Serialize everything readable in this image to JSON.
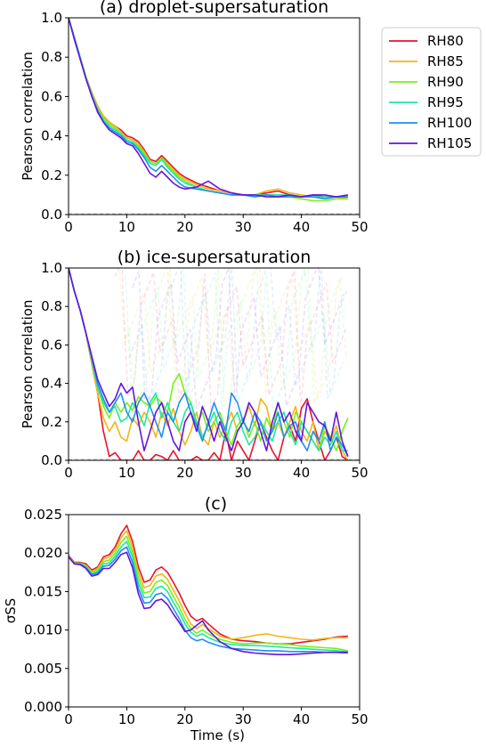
{
  "chart_data": [
    {
      "type": "line",
      "title": "(a) droplet-supersaturation",
      "xlabel": "",
      "ylabel": "Pearson correlation",
      "xlim": [
        0,
        50
      ],
      "ylim": [
        0,
        1.0
      ],
      "xticks": [
        "0",
        "10",
        "20",
        "30",
        "40",
        "50"
      ],
      "yticks": [
        "0.0",
        "0.2",
        "0.4",
        "0.6",
        "0.8",
        "1.0"
      ],
      "grid": false,
      "legend_position": "outside-right",
      "x": [
        0,
        1,
        2,
        3,
        4,
        5,
        6,
        7,
        8,
        9,
        10,
        11,
        12,
        13,
        14,
        15,
        16,
        17,
        18,
        19,
        20,
        22,
        24,
        26,
        28,
        30,
        32,
        34,
        36,
        38,
        40,
        42,
        44,
        46,
        48
      ],
      "series": [
        {
          "name": "RH80",
          "color": "#e8132e",
          "values": [
            1.0,
            0.9,
            0.8,
            0.7,
            0.62,
            0.55,
            0.5,
            0.47,
            0.45,
            0.43,
            0.4,
            0.39,
            0.37,
            0.33,
            0.28,
            0.27,
            0.3,
            0.27,
            0.24,
            0.21,
            0.19,
            0.16,
            0.14,
            0.12,
            0.11,
            0.1,
            0.1,
            0.11,
            0.12,
            0.1,
            0.09,
            0.1,
            0.09,
            0.09,
            0.09
          ]
        },
        {
          "name": "RH85",
          "color": "#f5b414",
          "values": [
            1.0,
            0.9,
            0.8,
            0.7,
            0.62,
            0.55,
            0.5,
            0.47,
            0.45,
            0.42,
            0.39,
            0.38,
            0.36,
            0.32,
            0.27,
            0.26,
            0.29,
            0.26,
            0.23,
            0.2,
            0.18,
            0.15,
            0.13,
            0.12,
            0.11,
            0.1,
            0.1,
            0.12,
            0.13,
            0.11,
            0.1,
            0.09,
            0.09,
            0.09,
            0.08
          ]
        },
        {
          "name": "RH90",
          "color": "#79f018",
          "values": [
            1.0,
            0.9,
            0.8,
            0.7,
            0.61,
            0.54,
            0.49,
            0.46,
            0.44,
            0.41,
            0.38,
            0.37,
            0.35,
            0.31,
            0.27,
            0.26,
            0.29,
            0.25,
            0.22,
            0.19,
            0.17,
            0.14,
            0.12,
            0.11,
            0.1,
            0.1,
            0.09,
            0.1,
            0.1,
            0.09,
            0.08,
            0.07,
            0.07,
            0.08,
            0.08
          ]
        },
        {
          "name": "RH95",
          "color": "#1ee8a4",
          "values": [
            1.0,
            0.9,
            0.8,
            0.69,
            0.61,
            0.53,
            0.48,
            0.45,
            0.43,
            0.41,
            0.38,
            0.37,
            0.34,
            0.3,
            0.26,
            0.25,
            0.28,
            0.24,
            0.21,
            0.18,
            0.16,
            0.14,
            0.12,
            0.11,
            0.1,
            0.1,
            0.1,
            0.1,
            0.1,
            0.1,
            0.09,
            0.09,
            0.09,
            0.09,
            0.09
          ]
        },
        {
          "name": "RH100",
          "color": "#1e90f0",
          "values": [
            1.0,
            0.9,
            0.79,
            0.69,
            0.6,
            0.53,
            0.47,
            0.44,
            0.42,
            0.4,
            0.37,
            0.36,
            0.33,
            0.29,
            0.24,
            0.22,
            0.25,
            0.22,
            0.19,
            0.16,
            0.14,
            0.13,
            0.12,
            0.11,
            0.1,
            0.1,
            0.09,
            0.1,
            0.09,
            0.09,
            0.09,
            0.09,
            0.08,
            0.09,
            0.09
          ]
        },
        {
          "name": "RH105",
          "color": "#6414e0",
          "values": [
            1.0,
            0.89,
            0.79,
            0.69,
            0.6,
            0.52,
            0.47,
            0.43,
            0.41,
            0.39,
            0.36,
            0.35,
            0.31,
            0.26,
            0.21,
            0.19,
            0.22,
            0.19,
            0.16,
            0.14,
            0.13,
            0.14,
            0.17,
            0.13,
            0.11,
            0.1,
            0.1,
            0.09,
            0.09,
            0.1,
            0.09,
            0.1,
            0.1,
            0.09,
            0.1
          ]
        }
      ]
    },
    {
      "type": "line",
      "title": "(b) ice-supersaturation",
      "xlabel": "",
      "ylabel": "Pearson correlation",
      "xlim": [
        0,
        50
      ],
      "ylim": [
        0,
        1.0
      ],
      "xticks": [
        "0",
        "10",
        "20",
        "30",
        "40",
        "50"
      ],
      "yticks": [
        "0.0",
        "0.2",
        "0.4",
        "0.6",
        "0.8",
        "1.0"
      ],
      "grid": false,
      "x": [
        0,
        1,
        2,
        3,
        4,
        5,
        6,
        7,
        8,
        9,
        10,
        11,
        12,
        13,
        14,
        15,
        16,
        17,
        18,
        19,
        20,
        21,
        22,
        23,
        24,
        25,
        26,
        27,
        28,
        29,
        30,
        31,
        32,
        33,
        34,
        35,
        36,
        37,
        38,
        39,
        40,
        41,
        42,
        43,
        44,
        45,
        46,
        47,
        48
      ],
      "series": [
        {
          "name": "RH80",
          "color": "#e8132e",
          "values": [
            1.0,
            0.88,
            0.78,
            0.66,
            0.5,
            0.35,
            0.15,
            0.02,
            0.04,
            0.0,
            0.0,
            0.0,
            0.05,
            0.0,
            0.0,
            0.03,
            0.02,
            0.0,
            0.05,
            0.0,
            0.0,
            0.0,
            0.02,
            0.0,
            0.0,
            0.04,
            0.0,
            0.15,
            0.0,
            0.1,
            0.05,
            0.0,
            0.1,
            0.2,
            0.12,
            0.05,
            0.0,
            0.12,
            0.18,
            0.1,
            0.27,
            0.32,
            0.2,
            0.1,
            0.0,
            0.05,
            0.12,
            0.02,
            0.0
          ]
        },
        {
          "name": "RH85",
          "color": "#f5b414",
          "values": [
            1.0,
            0.88,
            0.78,
            0.66,
            0.5,
            0.35,
            0.22,
            0.15,
            0.2,
            0.12,
            0.1,
            0.22,
            0.18,
            0.25,
            0.2,
            0.12,
            0.25,
            0.18,
            0.27,
            0.15,
            0.08,
            0.15,
            0.25,
            0.12,
            0.08,
            0.2,
            0.12,
            0.18,
            0.25,
            0.15,
            0.2,
            0.28,
            0.18,
            0.32,
            0.28,
            0.15,
            0.2,
            0.12,
            0.2,
            0.28,
            0.15,
            0.1,
            0.2,
            0.05,
            0.15,
            0.1,
            0.18,
            0.05,
            0.0
          ]
        },
        {
          "name": "RH90",
          "color": "#79f018",
          "values": [
            1.0,
            0.88,
            0.78,
            0.66,
            0.52,
            0.38,
            0.28,
            0.22,
            0.3,
            0.25,
            0.3,
            0.26,
            0.33,
            0.3,
            0.28,
            0.33,
            0.3,
            0.25,
            0.4,
            0.45,
            0.35,
            0.3,
            0.18,
            0.25,
            0.15,
            0.2,
            0.25,
            0.15,
            0.08,
            0.18,
            0.22,
            0.12,
            0.2,
            0.1,
            0.22,
            0.15,
            0.3,
            0.2,
            0.12,
            0.25,
            0.2,
            0.15,
            0.1,
            0.05,
            0.18,
            0.12,
            0.05,
            0.15,
            0.22
          ]
        },
        {
          "name": "RH95",
          "color": "#1ee8a4",
          "values": [
            1.0,
            0.88,
            0.78,
            0.66,
            0.52,
            0.38,
            0.3,
            0.25,
            0.28,
            0.2,
            0.22,
            0.3,
            0.25,
            0.18,
            0.3,
            0.35,
            0.22,
            0.3,
            0.2,
            0.15,
            0.25,
            0.3,
            0.2,
            0.12,
            0.18,
            0.25,
            0.15,
            0.1,
            0.2,
            0.25,
            0.15,
            0.08,
            0.12,
            0.2,
            0.15,
            0.1,
            0.2,
            0.25,
            0.15,
            0.08,
            0.2,
            0.15,
            0.1,
            0.05,
            0.12,
            0.08,
            0.15,
            0.05,
            0.05
          ]
        },
        {
          "name": "RH100",
          "color": "#1e90f0",
          "values": [
            1.0,
            0.88,
            0.78,
            0.66,
            0.53,
            0.4,
            0.32,
            0.25,
            0.3,
            0.35,
            0.25,
            0.2,
            0.3,
            0.35,
            0.28,
            0.2,
            0.12,
            0.25,
            0.2,
            0.3,
            0.35,
            0.25,
            0.18,
            0.1,
            0.2,
            0.3,
            0.22,
            0.15,
            0.35,
            0.3,
            0.2,
            0.15,
            0.25,
            0.2,
            0.1,
            0.15,
            0.25,
            0.12,
            0.18,
            0.2,
            0.1,
            0.05,
            0.15,
            0.1,
            0.2,
            0.05,
            0.12,
            0.08,
            0.02
          ]
        },
        {
          "name": "RH105",
          "color": "#6414e0",
          "values": [
            1.0,
            0.88,
            0.78,
            0.66,
            0.54,
            0.42,
            0.35,
            0.28,
            0.32,
            0.4,
            0.35,
            0.38,
            0.2,
            0.05,
            0.15,
            0.25,
            0.3,
            0.2,
            0.1,
            0.05,
            0.2,
            0.25,
            0.15,
            0.28,
            0.2,
            0.1,
            0.2,
            0.12,
            0.05,
            0.15,
            0.2,
            0.3,
            0.25,
            0.15,
            0.05,
            0.2,
            0.3,
            0.2,
            0.25,
            0.15,
            0.1,
            0.3,
            0.25,
            0.2,
            0.18,
            0.1,
            0.25,
            0.1,
            0.02
          ]
        }
      ]
    },
    {
      "type": "line",
      "title": "(c)",
      "xlabel": "Time (s)",
      "ylabel": "σSS",
      "xlim": [
        0,
        50
      ],
      "ylim": [
        0,
        0.025
      ],
      "xticks": [
        "0",
        "10",
        "20",
        "30",
        "40",
        "50"
      ],
      "yticks": [
        "0.000",
        "0.005",
        "0.010",
        "0.015",
        "0.020",
        "0.025"
      ],
      "grid": false,
      "x": [
        0,
        1,
        2,
        3,
        4,
        5,
        6,
        7,
        8,
        9,
        10,
        11,
        12,
        13,
        14,
        15,
        16,
        17,
        18,
        19,
        20,
        21,
        22,
        23,
        24,
        26,
        28,
        30,
        32,
        34,
        36,
        38,
        40,
        42,
        44,
        46,
        48
      ],
      "series": [
        {
          "name": "RH80",
          "color": "#e8132e",
          "values": [
            0.0197,
            0.0188,
            0.0188,
            0.0186,
            0.0178,
            0.0182,
            0.0195,
            0.0198,
            0.0208,
            0.0225,
            0.0236,
            0.0215,
            0.0182,
            0.0162,
            0.0165,
            0.0178,
            0.0182,
            0.0175,
            0.0162,
            0.0148,
            0.0132,
            0.0118,
            0.0112,
            0.0115,
            0.0108,
            0.0095,
            0.0088,
            0.0086,
            0.0085,
            0.0083,
            0.0082,
            0.0082,
            0.0084,
            0.0086,
            0.0088,
            0.0091,
            0.0092
          ]
        },
        {
          "name": "RH85",
          "color": "#f5b414",
          "values": [
            0.0196,
            0.0187,
            0.0187,
            0.0184,
            0.0176,
            0.018,
            0.0192,
            0.0195,
            0.0204,
            0.022,
            0.0229,
            0.0208,
            0.0175,
            0.0155,
            0.0158,
            0.017,
            0.0173,
            0.0166,
            0.0152,
            0.0138,
            0.0122,
            0.0108,
            0.0102,
            0.0107,
            0.0102,
            0.0092,
            0.0088,
            0.009,
            0.0093,
            0.0095,
            0.0092,
            0.009,
            0.0088,
            0.0087,
            0.0089,
            0.009,
            0.009
          ]
        },
        {
          "name": "RH90",
          "color": "#79f018",
          "values": [
            0.0195,
            0.0187,
            0.0187,
            0.0183,
            0.0175,
            0.0178,
            0.0189,
            0.0191,
            0.02,
            0.0214,
            0.0222,
            0.0201,
            0.0168,
            0.0148,
            0.015,
            0.0162,
            0.0165,
            0.0158,
            0.0144,
            0.013,
            0.0114,
            0.0102,
            0.0096,
            0.01,
            0.0095,
            0.0088,
            0.0084,
            0.0082,
            0.0083,
            0.0083,
            0.0082,
            0.0081,
            0.0079,
            0.0078,
            0.0077,
            0.0076,
            0.0073
          ]
        },
        {
          "name": "RH95",
          "color": "#1ee8a4",
          "values": [
            0.0195,
            0.0186,
            0.0186,
            0.0182,
            0.0173,
            0.0176,
            0.0186,
            0.0187,
            0.0196,
            0.0208,
            0.0215,
            0.0195,
            0.0161,
            0.0142,
            0.0143,
            0.0154,
            0.0157,
            0.015,
            0.0136,
            0.0123,
            0.0108,
            0.0097,
            0.0092,
            0.0095,
            0.009,
            0.0084,
            0.0081,
            0.008,
            0.008,
            0.0079,
            0.0078,
            0.0077,
            0.0076,
            0.0075,
            0.0074,
            0.0073,
            0.0072
          ]
        },
        {
          "name": "RH100",
          "color": "#1e90f0",
          "values": [
            0.0195,
            0.0186,
            0.0186,
            0.0181,
            0.0172,
            0.0174,
            0.0183,
            0.0184,
            0.0192,
            0.0203,
            0.0208,
            0.0188,
            0.0154,
            0.0135,
            0.0136,
            0.0146,
            0.0148,
            0.0141,
            0.0128,
            0.0115,
            0.01,
            0.009,
            0.0086,
            0.0088,
            0.0084,
            0.0079,
            0.0076,
            0.0075,
            0.0074,
            0.0073,
            0.0073,
            0.0072,
            0.0072,
            0.0072,
            0.0071,
            0.0071,
            0.007
          ]
        },
        {
          "name": "RH105",
          "color": "#6414e0",
          "values": [
            0.0195,
            0.0186,
            0.0185,
            0.018,
            0.017,
            0.0172,
            0.018,
            0.018,
            0.0188,
            0.0198,
            0.0201,
            0.0181,
            0.0147,
            0.0128,
            0.0129,
            0.0138,
            0.014,
            0.0133,
            0.0121,
            0.011,
            0.0098,
            0.01,
            0.0106,
            0.0112,
            0.01,
            0.0085,
            0.0076,
            0.0072,
            0.007,
            0.0069,
            0.0068,
            0.0068,
            0.0069,
            0.007,
            0.0071,
            0.0071,
            0.0071
          ]
        }
      ]
    }
  ]
}
